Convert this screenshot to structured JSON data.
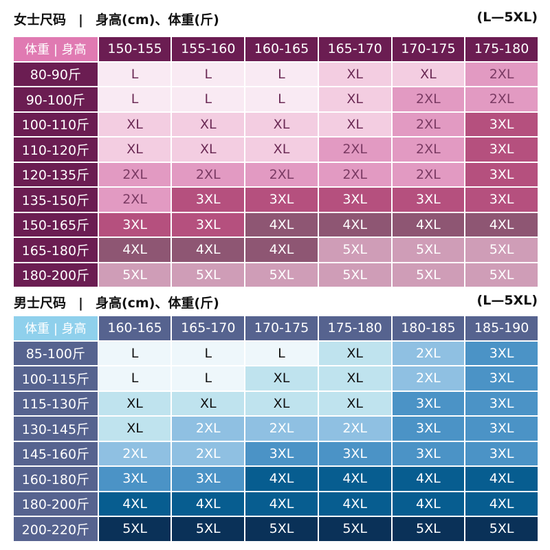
{
  "women": {
    "title": "女士尺码",
    "separator": "|",
    "subtitle": "身高(cm)、体重(斤)",
    "range": "(L—5XL)",
    "corner_label": "体重 | 身高",
    "colors": {
      "corner_bg": "#e07ab2",
      "header_bg": "#6b1d52",
      "L": "#f9eaf3",
      "XL": "#f3cde1",
      "2XL": "#e29ac2",
      "3XL": "#b5507e",
      "4XL": "#8e5673",
      "5XL": "#cf9db7"
    },
    "heights": [
      "150-155",
      "155-160",
      "160-165",
      "165-170",
      "170-175",
      "175-180"
    ],
    "rows": [
      {
        "weight": "80-90斤",
        "sizes": [
          "L",
          "L",
          "L",
          "XL",
          "XL",
          "2XL"
        ]
      },
      {
        "weight": "90-100斤",
        "sizes": [
          "L",
          "L",
          "L",
          "XL",
          "2XL",
          "2XL"
        ]
      },
      {
        "weight": "100-110斤",
        "sizes": [
          "XL",
          "XL",
          "XL",
          "XL",
          "2XL",
          "3XL"
        ]
      },
      {
        "weight": "110-120斤",
        "sizes": [
          "XL",
          "XL",
          "XL",
          "2XL",
          "2XL",
          "3XL"
        ]
      },
      {
        "weight": "120-135斤",
        "sizes": [
          "2XL",
          "2XL",
          "2XL",
          "2XL",
          "2XL",
          "3XL"
        ]
      },
      {
        "weight": "135-150斤",
        "sizes": [
          "2XL",
          "3XL",
          "3XL",
          "3XL",
          "3XL",
          "3XL"
        ]
      },
      {
        "weight": "150-165斤",
        "sizes": [
          "3XL",
          "3XL",
          "4XL",
          "4XL",
          "4XL",
          "4XL"
        ]
      },
      {
        "weight": "165-180斤",
        "sizes": [
          "4XL",
          "4XL",
          "4XL",
          "5XL",
          "5XL",
          "5XL"
        ]
      },
      {
        "weight": "180-200斤",
        "sizes": [
          "5XL",
          "5XL",
          "5XL",
          "5XL",
          "5XL",
          "5XL"
        ]
      }
    ]
  },
  "men": {
    "title": "男士尺码",
    "separator": "|",
    "subtitle": "身高(cm)、体重(斤)",
    "range": "(L—5XL)",
    "corner_label": "体重 | 身高",
    "colors": {
      "corner_bg": "#8fd0ec",
      "header_bg": "#56638f",
      "L": "#eef7fb",
      "XL": "#bfe3ee",
      "2XL": "#8fc0e2",
      "3XL": "#4b93c6",
      "4XL": "#075d90",
      "5XL": "#0a3158"
    },
    "heights": [
      "160-165",
      "165-170",
      "170-175",
      "175-180",
      "180-185",
      "185-190"
    ],
    "rows": [
      {
        "weight": "85-100斤",
        "sizes": [
          "L",
          "L",
          "L",
          "XL",
          "2XL",
          "3XL"
        ]
      },
      {
        "weight": "100-115斤",
        "sizes": [
          "L",
          "L",
          "XL",
          "XL",
          "2XL",
          "3XL"
        ]
      },
      {
        "weight": "115-130斤",
        "sizes": [
          "XL",
          "XL",
          "XL",
          "XL",
          "3XL",
          "3XL"
        ]
      },
      {
        "weight": "130-145斤",
        "sizes": [
          "XL",
          "2XL",
          "2XL",
          "2XL",
          "3XL",
          "3XL"
        ]
      },
      {
        "weight": "145-160斤",
        "sizes": [
          "2XL",
          "2XL",
          "3XL",
          "3XL",
          "3XL",
          "3XL"
        ]
      },
      {
        "weight": "160-180斤",
        "sizes": [
          "3XL",
          "3XL",
          "4XL",
          "4XL",
          "4XL",
          "4XL"
        ]
      },
      {
        "weight": "180-200斤",
        "sizes": [
          "4XL",
          "4XL",
          "4XL",
          "4XL",
          "4XL",
          "4XL"
        ]
      },
      {
        "weight": "200-220斤",
        "sizes": [
          "5XL",
          "5XL",
          "5XL",
          "5XL",
          "5XL",
          "5XL"
        ]
      }
    ]
  }
}
